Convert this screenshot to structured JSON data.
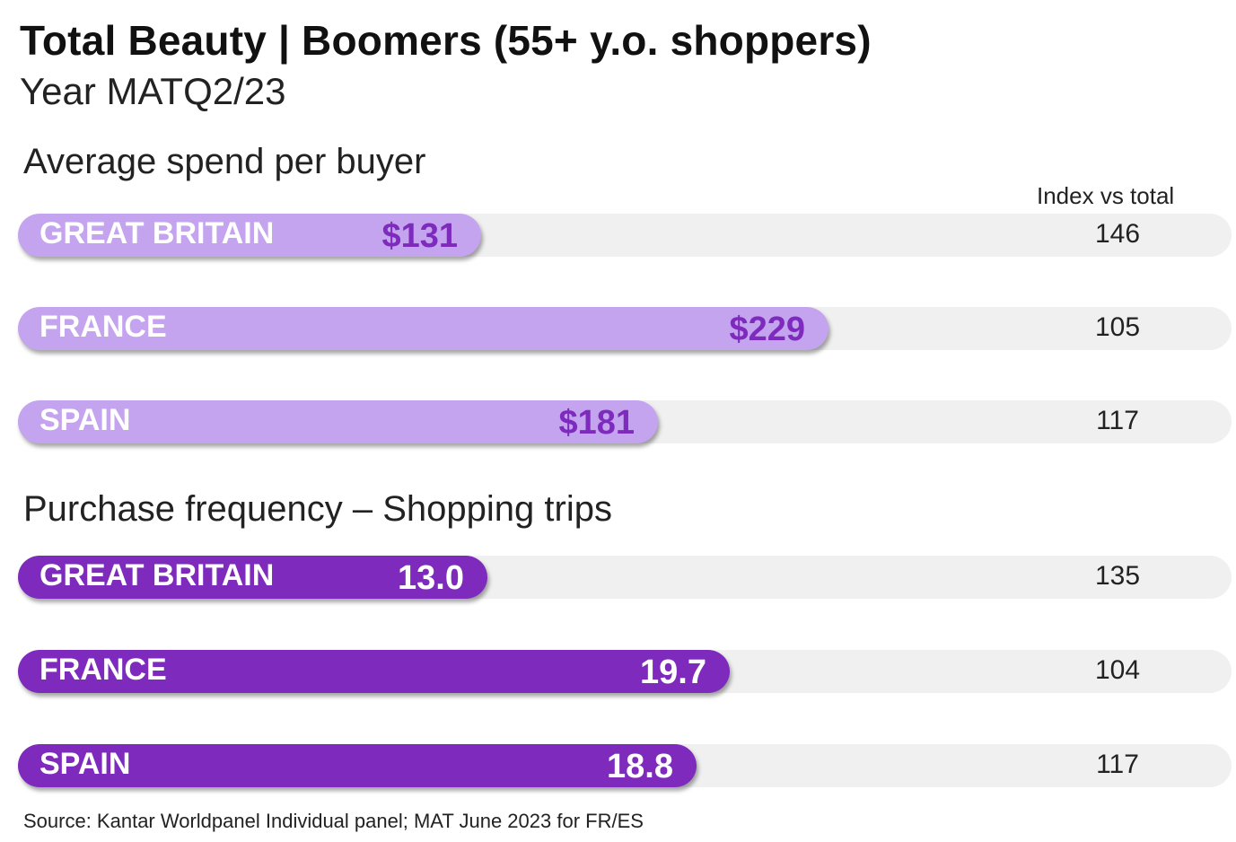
{
  "title": "Total Beauty | Boomers (55+ y.o. shoppers)",
  "subtitle": "Year MATQ2/23",
  "index_header": "Index vs total",
  "source": "Source: Kantar Worldpanel Individual panel; MAT June 2023 for FR/ES",
  "colors": {
    "spend_bar": "#c4a4ee",
    "spend_value_text": "#7e2bbd",
    "frequency_bar": "#7e2bbd",
    "frequency_value_text": "#ffffff",
    "track": "#f0f0f0"
  },
  "chart_data": [
    {
      "type": "bar",
      "title": "Average spend per buyer",
      "categories": [
        "GREAT BRITAIN",
        "FRANCE",
        "SPAIN"
      ],
      "values": [
        131,
        229,
        181
      ],
      "value_labels": [
        "$131",
        "$229",
        "$181"
      ],
      "index_vs_total": [
        "146",
        "105",
        "117"
      ],
      "xlim": [
        0,
        343
      ]
    },
    {
      "type": "bar",
      "title": "Purchase frequency – Shopping trips",
      "categories": [
        "GREAT BRITAIN",
        "FRANCE",
        "SPAIN"
      ],
      "values": [
        13.0,
        19.7,
        18.8
      ],
      "value_labels": [
        "13.0",
        "19.7",
        "18.8"
      ],
      "index_vs_total": [
        "135",
        "104",
        "117"
      ],
      "xlim": [
        0,
        33.6
      ]
    }
  ]
}
